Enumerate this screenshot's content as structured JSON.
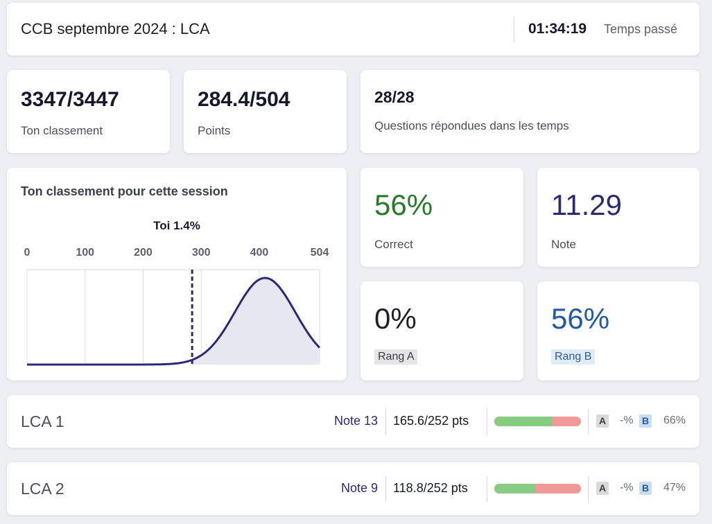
{
  "header": {
    "title": "CCB septembre 2024 : LCA",
    "time": "01:34:19",
    "time_label": "Temps passé"
  },
  "stats_top": {
    "rank": {
      "value": "3347/3447",
      "label": "Ton classement"
    },
    "points": {
      "value": "284.4/504",
      "label": "Points"
    },
    "questions": {
      "value": "28/28",
      "label": "Questions répondues dans les temps"
    }
  },
  "tiles": {
    "correct": {
      "value": "56%",
      "label": "Correct",
      "color": "#257a2a"
    },
    "note": {
      "value": "11.29",
      "label": "Note",
      "color": "#2a2b72"
    },
    "rang_a": {
      "value": "0%",
      "label": "Rang A",
      "color": "#1d1f2a"
    },
    "rang_b": {
      "value": "56%",
      "label": "Rang B",
      "color": "#1f5aa6"
    }
  },
  "chart_data": {
    "type": "area",
    "title": "Ton classement pour cette session",
    "marker_label": "Toi 1.4%",
    "marker_x": 284.4,
    "x_ticks": [
      "0",
      "100",
      "200",
      "300",
      "400",
      "504"
    ],
    "xlim": [
      0,
      504
    ],
    "distribution": {
      "mean": 410,
      "sd": 52
    },
    "grid": true,
    "colors": {
      "line": "#2a2878",
      "fill": "#e7e7f1",
      "marker": "#2a2878"
    }
  },
  "sections": [
    {
      "name": "LCA 1",
      "note": "Note 13",
      "points": "165.6/252 pts",
      "correct_fraction": 0.66,
      "rang_a_badge": "A",
      "rang_a": "-%",
      "rang_b_badge": "B",
      "rang_b": "66%"
    },
    {
      "name": "LCA 2",
      "note": "Note 9",
      "points": "118.8/252 pts",
      "correct_fraction": 0.47,
      "rang_a_badge": "A",
      "rang_a": "-%",
      "rang_b_badge": "B",
      "rang_b": "47%"
    }
  ]
}
